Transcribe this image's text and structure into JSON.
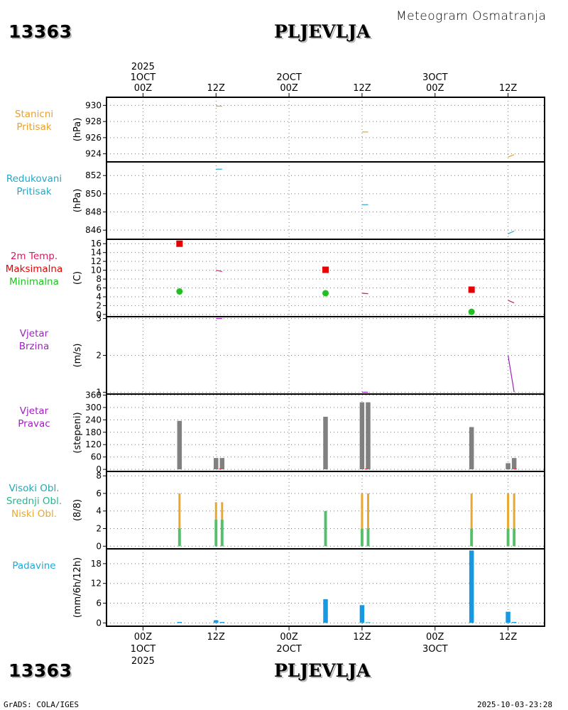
{
  "header": {
    "station_id": "13363",
    "station_name": "PLJEVLJA",
    "product_title": "Meteogram Osmatranja"
  },
  "footer": {
    "station_id": "13363",
    "station_name": "PLJEVLJA",
    "credit": "GrADS: COLA/IGES",
    "timestamp": "2025-10-03-23:28"
  },
  "time_axis": {
    "top_labels": [
      [
        "2025",
        "1OCT",
        "00Z"
      ],
      [
        "12Z"
      ],
      [
        "2OCT",
        "00Z"
      ],
      [
        "12Z"
      ],
      [
        "3OCT",
        "00Z"
      ],
      [
        "12Z"
      ]
    ],
    "bottom_labels": [
      [
        "00Z",
        "1OCT",
        "2025"
      ],
      [
        "12Z"
      ],
      [
        "00Z",
        "2OCT"
      ],
      [
        "12Z"
      ],
      [
        "00Z",
        "3OCT"
      ],
      [
        "12Z"
      ]
    ]
  },
  "chart_data": [
    {
      "type": "line",
      "id": "station_pressure",
      "title_lines": [
        "Stanicni",
        "Pritisak"
      ],
      "ylabel": "(hPa)",
      "color": "#e8a030",
      "x_unit": "hours since 2025-10-01 00Z",
      "xlim": [
        -6,
        66
      ],
      "ylim": [
        923,
        931
      ],
      "yticks": [
        924,
        926,
        928,
        930
      ],
      "segments": [
        [
          [
            12,
            929.9
          ],
          [
            13,
            929.9
          ]
        ],
        [
          [
            36,
            926.7
          ],
          [
            37,
            926.7
          ]
        ],
        [
          [
            60,
            923.6
          ],
          [
            61,
            923.9
          ]
        ]
      ]
    },
    {
      "type": "line",
      "id": "reduced_pressure",
      "title_lines": [
        "Redukovani",
        "Pritisak"
      ],
      "ylabel": "(hPa)",
      "color": "#30a8c8",
      "x_unit": "hours since 2025-10-01 00Z",
      "xlim": [
        -6,
        66
      ],
      "ylim": [
        845,
        853.5
      ],
      "yticks": [
        846,
        848,
        850,
        852
      ],
      "segments": [
        [
          [
            12,
            852.7
          ],
          [
            13,
            852.7
          ]
        ],
        [
          [
            36,
            848.8
          ],
          [
            37,
            848.8
          ]
        ],
        [
          [
            60,
            845.6
          ],
          [
            61,
            845.9
          ]
        ]
      ]
    },
    {
      "type": "scatter",
      "id": "temperature",
      "title_lines": [
        "2m Temp.",
        "Maksimalna",
        "Minimalna"
      ],
      "title_colors": [
        "#d81860",
        "#e80000",
        "#20c020"
      ],
      "ylabel": "(C)",
      "x_unit": "hours since 2025-10-01 00Z",
      "xlim": [
        -6,
        66
      ],
      "ylim": [
        -0.5,
        17
      ],
      "yticks": [
        0,
        2,
        4,
        6,
        8,
        10,
        12,
        14,
        16
      ],
      "series": [
        {
          "name": "Maksimalna",
          "color": "#e80000",
          "marker": "square",
          "points": [
            [
              6,
              16.0
            ],
            [
              30,
              10.1
            ],
            [
              54,
              5.6
            ]
          ]
        },
        {
          "name": "Minimalna",
          "color": "#20c020",
          "marker": "circle",
          "points": [
            [
              6,
              5.2
            ],
            [
              30,
              4.8
            ],
            [
              54,
              0.6
            ]
          ]
        },
        {
          "name": "2m Temp.",
          "color": "#d81860",
          "marker": "line",
          "segments": [
            [
              [
                12,
                10.0
              ],
              [
                13,
                9.7
              ]
            ],
            [
              [
                36,
                4.8
              ],
              [
                37,
                4.7
              ]
            ],
            [
              [
                60,
                3.2
              ],
              [
                61,
                2.6
              ]
            ]
          ]
        }
      ]
    },
    {
      "type": "line",
      "id": "wind_speed",
      "title_lines": [
        "Vjetar",
        "Brzina"
      ],
      "ylabel": "(m/s)",
      "color": "#a020c0",
      "x_unit": "hours since 2025-10-01 00Z",
      "xlim": [
        -6,
        66
      ],
      "ylim": [
        0.95,
        3.05
      ],
      "yticks": [
        1,
        2,
        3
      ],
      "segments": [
        [
          [
            12,
            3.0
          ],
          [
            13,
            3.0
          ]
        ],
        [
          [
            36,
            1.0
          ],
          [
            37,
            1.0
          ]
        ],
        [
          [
            60,
            2.0
          ],
          [
            61,
            1.0
          ]
        ]
      ]
    },
    {
      "type": "bar",
      "id": "wind_direction",
      "title_lines": [
        "Vjetar",
        "Pravac"
      ],
      "ylabel": "(stepeni)",
      "color": "#808080",
      "x_unit": "hours since 2025-10-01 00Z",
      "xlim": [
        -6,
        66
      ],
      "ylim": [
        -10,
        365
      ],
      "yticks": [
        0,
        60,
        120,
        180,
        240,
        300,
        360
      ],
      "bars": [
        [
          6,
          235
        ],
        [
          12,
          55
        ],
        [
          13,
          55
        ],
        [
          30,
          255
        ],
        [
          36,
          325
        ],
        [
          37,
          325
        ],
        [
          54,
          205
        ],
        [
          60,
          30
        ],
        [
          61,
          55
        ]
      ]
    },
    {
      "type": "bar",
      "id": "cloud_cover",
      "title_lines": [
        "Visoki Obl.",
        "Srednji Obl.",
        "Niski Obl."
      ],
      "title_colors": [
        "#20a8b8",
        "#20b890",
        "#e8a830"
      ],
      "ylabel": "(8/8)",
      "x_unit": "hours since 2025-10-01 00Z",
      "xlim": [
        -6,
        66
      ],
      "ylim": [
        -0.3,
        8.5
      ],
      "yticks": [
        0,
        2,
        4,
        6,
        8
      ],
      "series": [
        {
          "name": "Niski Obl.",
          "color": "#e8a830",
          "values": [
            [
              6,
              6
            ],
            [
              12,
              5
            ],
            [
              13,
              5
            ],
            [
              30,
              4
            ],
            [
              36,
              6
            ],
            [
              37,
              6
            ],
            [
              54,
              6
            ],
            [
              60,
              6
            ],
            [
              61,
              6
            ]
          ]
        },
        {
          "name": "Srednji Obl.",
          "color": "#40c070",
          "values": [
            [
              6,
              2
            ],
            [
              12,
              3
            ],
            [
              13,
              3
            ],
            [
              30,
              4
            ],
            [
              36,
              2
            ],
            [
              37,
              2
            ],
            [
              54,
              2
            ],
            [
              60,
              2
            ],
            [
              61,
              2
            ]
          ]
        }
      ]
    },
    {
      "type": "bar",
      "id": "precipitation",
      "title_lines": [
        "Padavine"
      ],
      "ylabel": "(mm/6h/12h)",
      "color": "#1898e0",
      "x_unit": "hours since 2025-10-01 00Z",
      "xlim": [
        -6,
        66
      ],
      "ylim": [
        -1,
        22.5
      ],
      "yticks": [
        0,
        6,
        12,
        18
      ],
      "bars": [
        [
          6,
          0.3
        ],
        [
          12,
          0.8
        ],
        [
          13,
          0.3
        ],
        [
          30,
          7.2
        ],
        [
          36,
          5.4
        ],
        [
          37,
          0.2
        ],
        [
          54,
          22.0
        ],
        [
          60,
          3.4
        ],
        [
          61,
          0.3
        ]
      ]
    }
  ]
}
